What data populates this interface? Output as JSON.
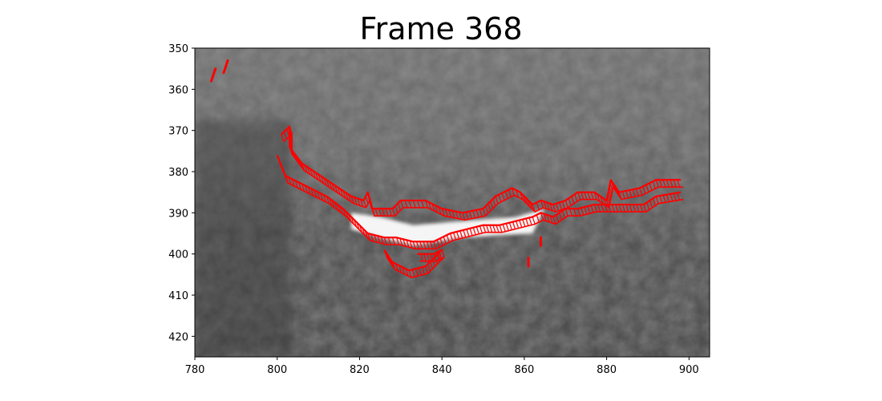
{
  "title": "Frame 368",
  "image_description_free": true,
  "axes": {
    "x": {
      "range": [
        780,
        905
      ],
      "ticks": [
        780,
        800,
        820,
        840,
        860,
        880,
        900
      ]
    },
    "y": {
      "range": [
        350,
        425
      ],
      "inverted": true,
      "ticks": [
        350,
        360,
        370,
        380,
        390,
        400,
        410,
        420
      ]
    }
  },
  "overlay": {
    "color": "#ff0000",
    "style": "contour-vectors",
    "contours": [
      {
        "name": "upper-contour",
        "points": [
          [
            801,
            371
          ],
          [
            803,
            369
          ],
          [
            803,
            374
          ],
          [
            806,
            378
          ],
          [
            812,
            382
          ],
          [
            818,
            386
          ],
          [
            821,
            387
          ],
          [
            822,
            385
          ],
          [
            823,
            389
          ],
          [
            828,
            389
          ],
          [
            830,
            387
          ],
          [
            833,
            387
          ],
          [
            836,
            387
          ],
          [
            840,
            389
          ],
          [
            845,
            390
          ],
          [
            850,
            389
          ],
          [
            853,
            386
          ],
          [
            857,
            384
          ],
          [
            859,
            385
          ],
          [
            862,
            388
          ],
          [
            864,
            387
          ],
          [
            867,
            388
          ],
          [
            870,
            387
          ],
          [
            873,
            385
          ],
          [
            877,
            385
          ],
          [
            880,
            387
          ],
          [
            881,
            382
          ],
          [
            883,
            385
          ],
          [
            888,
            384
          ],
          [
            892,
            382
          ],
          [
            898,
            382
          ]
        ]
      },
      {
        "name": "lower-contour",
        "points": [
          [
            800,
            376
          ],
          [
            802,
            381
          ],
          [
            806,
            383
          ],
          [
            812,
            386
          ],
          [
            816,
            389
          ],
          [
            818,
            391
          ],
          [
            820,
            393
          ],
          [
            822,
            395
          ],
          [
            826,
            396
          ],
          [
            829,
            396
          ],
          [
            833,
            397
          ],
          [
            838,
            397
          ],
          [
            842,
            395
          ],
          [
            846,
            394
          ],
          [
            850,
            393
          ],
          [
            854,
            393
          ],
          [
            858,
            392
          ],
          [
            862,
            391
          ],
          [
            864,
            390
          ],
          [
            867,
            391
          ],
          [
            870,
            389
          ],
          [
            873,
            389
          ],
          [
            877,
            388
          ],
          [
            883,
            388
          ],
          [
            889,
            388
          ],
          [
            892,
            386
          ],
          [
            898,
            385
          ]
        ]
      },
      {
        "name": "inner-lobe-contour",
        "points": [
          [
            826,
            399
          ],
          [
            828,
            402
          ],
          [
            832,
            404
          ],
          [
            836,
            403
          ],
          [
            840,
            399
          ],
          [
            838,
            400
          ],
          [
            834,
            400
          ]
        ]
      }
    ],
    "spots": [
      {
        "name": "spot-1",
        "points": [
          [
            784,
            358
          ],
          [
            785,
            355
          ]
        ]
      },
      {
        "name": "spot-2",
        "points": [
          [
            787,
            356
          ],
          [
            788,
            353
          ]
        ]
      },
      {
        "name": "spot-3",
        "points": [
          [
            864,
            396
          ],
          [
            864,
            398
          ]
        ]
      },
      {
        "name": "spot-4",
        "points": [
          [
            861,
            401
          ],
          [
            861,
            403
          ]
        ]
      }
    ]
  },
  "background": {
    "colormap": "gray",
    "bright_region": [
      [
        818,
        390
      ],
      [
        825,
        391
      ],
      [
        833,
        393
      ],
      [
        845,
        392
      ],
      [
        858,
        391
      ],
      [
        865,
        389
      ],
      [
        862,
        395
      ],
      [
        845,
        396
      ],
      [
        833,
        398
      ],
      [
        825,
        396
      ],
      [
        818,
        394
      ]
    ]
  }
}
